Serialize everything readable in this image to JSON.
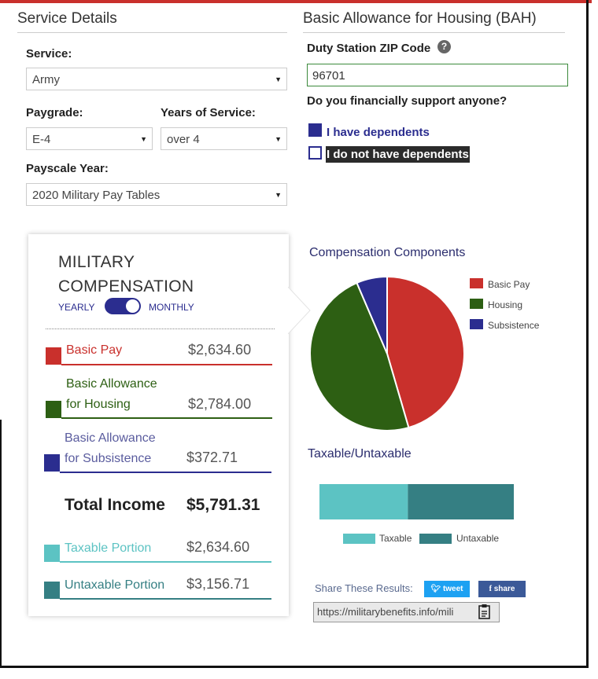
{
  "service_details": {
    "title": "Service Details",
    "service_label": "Service:",
    "service_value": "Army",
    "paygrade_label": "Paygrade:",
    "paygrade_value": "E-4",
    "years_label": "Years of Service:",
    "years_value": "over 4",
    "payscale_label": "Payscale Year:",
    "payscale_value": "2020 Military Pay Tables"
  },
  "bah": {
    "title": "Basic Allowance for Housing (BAH)",
    "zip_label": "Duty Station ZIP Code",
    "zip_value": "96701",
    "help_icon": "?",
    "support_question": "Do you financially support anyone?",
    "dependents_yes": "I have dependents",
    "dependents_no": "I do not have dependents"
  },
  "compensation": {
    "title_line1": "MILITARY",
    "title_line2": "COMPENSATION",
    "toggle_left": "YEARLY",
    "toggle_right": "MONTHLY",
    "rows": [
      {
        "label": "Basic Pay",
        "amount": "$2,634.60",
        "color": "#c9302c"
      },
      {
        "label_line1": "Basic Allowance",
        "label_line2": "for Housing",
        "amount": "$2,784.00",
        "color": "#2d5f13"
      },
      {
        "label_line1": "Basic Allowance",
        "label_line2": "for Subsistence",
        "amount": "$372.71",
        "color": "#2b2d8f"
      }
    ],
    "total_label": "Total Income",
    "total_amount": "$5,791.31",
    "taxable_label": "Taxable Portion",
    "taxable_amount": "$2,634.60",
    "untaxable_label": "Untaxable Portion",
    "untaxable_amount": "$3,156.71",
    "taxable_color": "#5cc3c3",
    "untaxable_color": "#357f83"
  },
  "chart_data": [
    {
      "type": "pie",
      "title": "Compensation Components",
      "labels": [
        "Basic Pay",
        "Housing",
        "Subsistence"
      ],
      "values": [
        2634.6,
        2784.0,
        372.71
      ],
      "colors": [
        "#c9302c",
        "#2d5f13",
        "#2b2d8f"
      ],
      "legend": "right"
    },
    {
      "type": "bar",
      "title": "Taxable/Untaxable",
      "categories": [
        "Taxable",
        "Untaxable"
      ],
      "values": [
        2634.6,
        3156.71
      ],
      "colors": [
        "#5cc3c3",
        "#357f83"
      ],
      "stacked": true,
      "orientation": "horizontal",
      "legend": "bottom"
    }
  ],
  "share": {
    "label": "Share These Results:",
    "tweet": "tweet",
    "share_btn": "share",
    "url": "https://militarybenefits.info/mili",
    "tweet_color": "#1da1f2",
    "facebook_color": "#3b5998"
  }
}
